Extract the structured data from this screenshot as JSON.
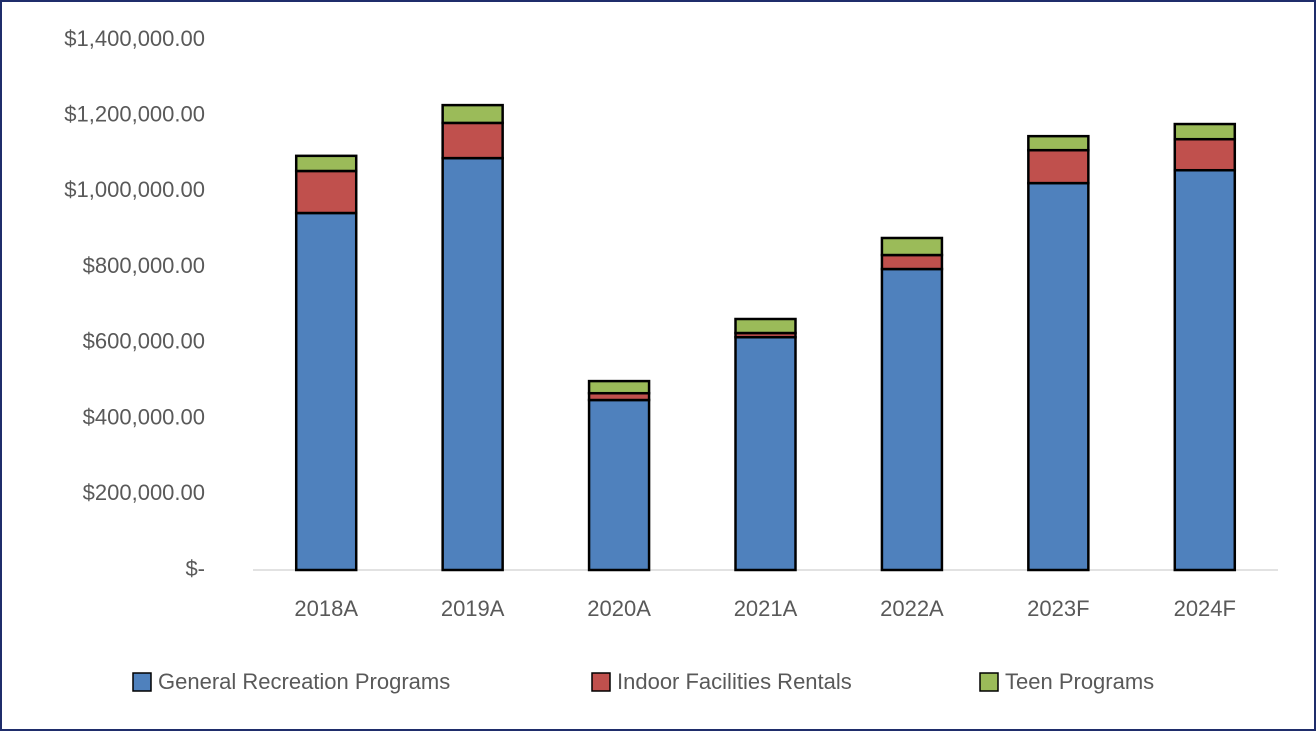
{
  "chart_data": {
    "type": "stacked_bar",
    "categories": [
      "2018A",
      "2019A",
      "2020A",
      "2021A",
      "2022A",
      "2023F",
      "2024F"
    ],
    "series": [
      {
        "name": "General Recreation Programs",
        "color": "#4f81bd",
        "values": [
          943000,
          1088000,
          449000,
          615000,
          795000,
          1022000,
          1056000
        ]
      },
      {
        "name": "Indoor Facilities Rentals",
        "color": "#c0504d",
        "values": [
          111000,
          93000,
          18000,
          11000,
          37000,
          87000,
          82000
        ]
      },
      {
        "name": "Teen Programs",
        "color": "#9bbb59",
        "values": [
          40000,
          47000,
          32000,
          37000,
          45000,
          37000,
          40000
        ]
      }
    ],
    "ylim": [
      0,
      1400000
    ],
    "yticks": [
      {
        "value": 0,
        "label": "$-"
      },
      {
        "value": 200000,
        "label": "$200,000.00"
      },
      {
        "value": 400000,
        "label": "$400,000.00"
      },
      {
        "value": 600000,
        "label": "$600,000.00"
      },
      {
        "value": 800000,
        "label": "$800,000.00"
      },
      {
        "value": 1000000,
        "label": "$1,000,000.00"
      },
      {
        "value": 1200000,
        "label": "$1,200,000.00"
      },
      {
        "value": 1400000,
        "label": "$1,400,000.00"
      }
    ],
    "grid": false,
    "legend": "bottom"
  }
}
